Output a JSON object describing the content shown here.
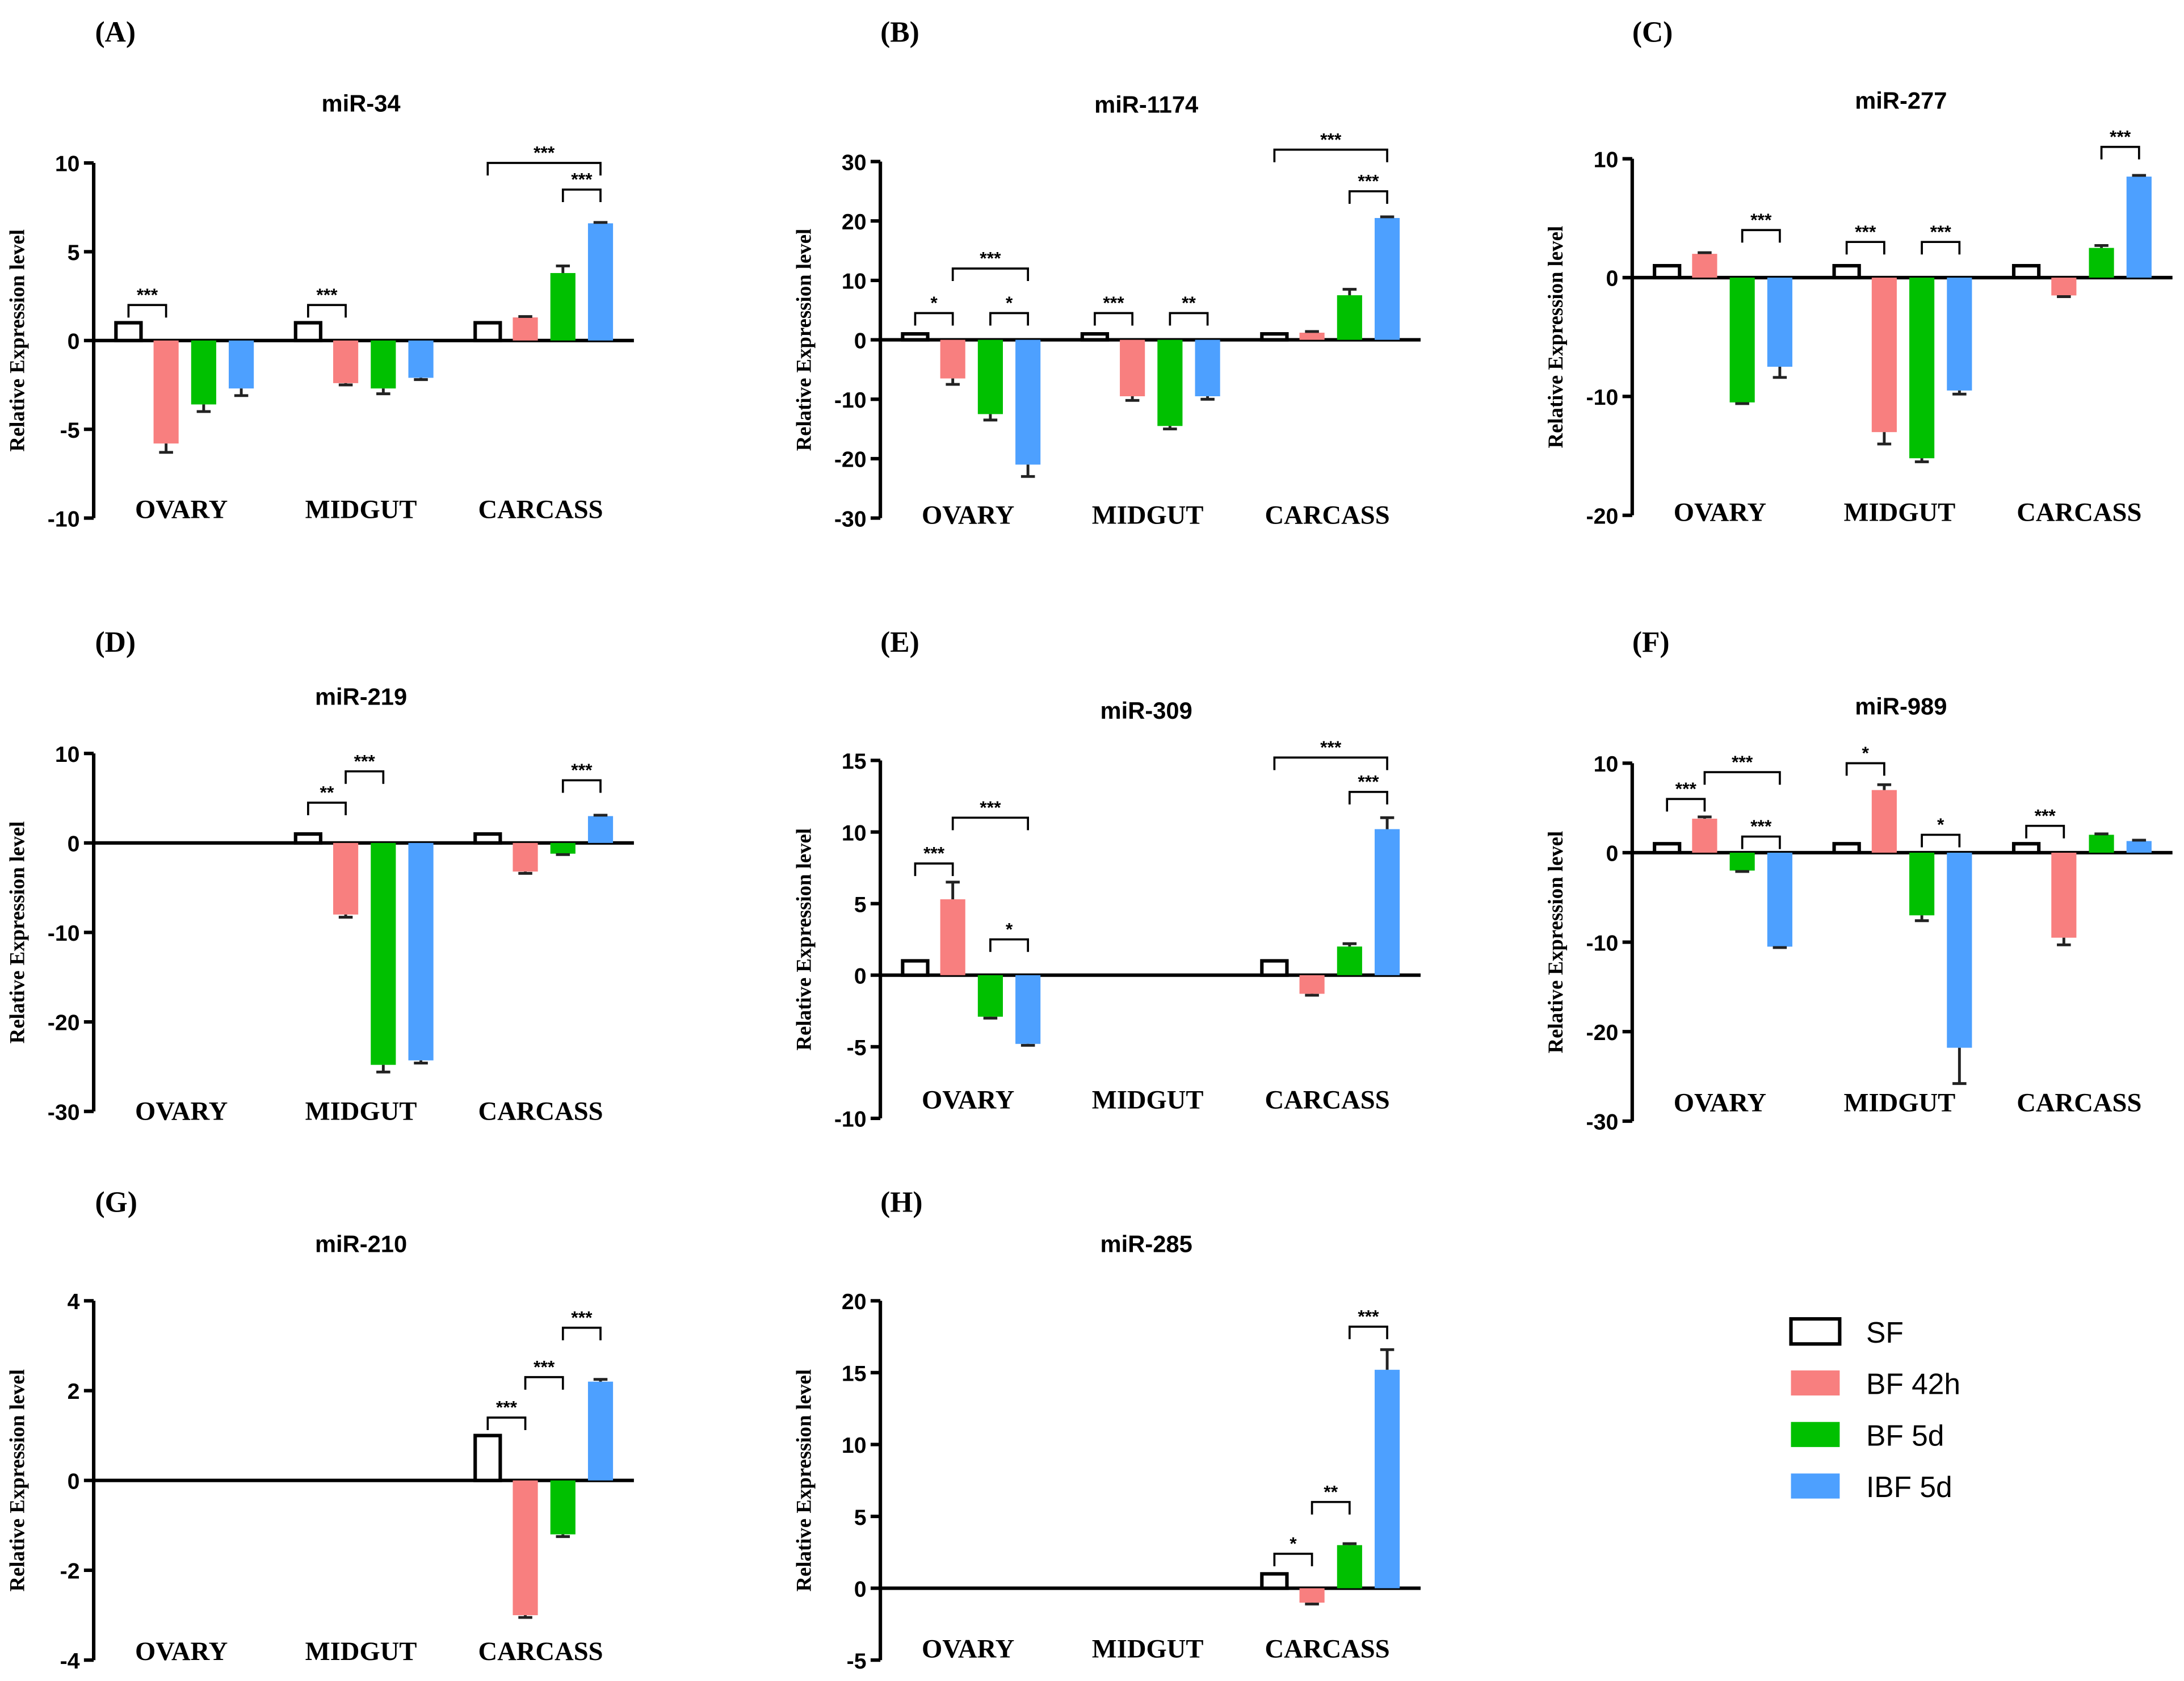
{
  "legend": [
    {
      "name": "SF",
      "color": "#FFFFFF",
      "stroke": "#000000"
    },
    {
      "name": "BF 42h",
      "color": "#F87F7F"
    },
    {
      "name": "BF 5d",
      "color": "#00C000"
    },
    {
      "name": "IBF 5d",
      "color": "#4DA0FF"
    }
  ],
  "chart_data": [
    {
      "type": "bar",
      "label": "(A)",
      "title": "miR-34",
      "ylabel": "Relative Expression level",
      "ylim": [
        -10,
        10
      ],
      "yticks": [
        -10,
        -5,
        0,
        5,
        10
      ],
      "categories": [
        "OVARY",
        "MIDGUT",
        "CARCASS"
      ],
      "values": [
        [
          1,
          -5.8,
          -3.6,
          -2.7
        ],
        [
          1,
          -2.4,
          -2.7,
          -2.1
        ],
        [
          1,
          1.3,
          3.8,
          6.6
        ]
      ],
      "errors": [
        [
          0,
          0.5,
          0.4,
          0.4
        ],
        [
          0,
          0.1,
          0.3,
          0.1
        ],
        [
          0,
          0.05,
          0.4,
          0.05
        ]
      ],
      "significance": [
        {
          "group": 0,
          "from": 0,
          "to": 1,
          "y": 2,
          "label": "***"
        },
        {
          "group": 1,
          "from": 0,
          "to": 1,
          "y": 2,
          "label": "***"
        },
        {
          "group": 2,
          "from": 2,
          "to": 3,
          "y": 8.5,
          "label": "***"
        },
        {
          "group": 2,
          "from": 0,
          "to": 3,
          "y": 10,
          "label": "***"
        }
      ]
    },
    {
      "type": "bar",
      "label": "(B)",
      "title": "miR-1174",
      "ylabel": "Relative Expression level",
      "ylim": [
        -30,
        30
      ],
      "yticks": [
        -30,
        -20,
        -10,
        0,
        10,
        20,
        30
      ],
      "categories": [
        "OVARY",
        "MIDGUT",
        "CARCASS"
      ],
      "values": [
        [
          1,
          -6.5,
          -12.5,
          -21
        ],
        [
          1,
          -9.5,
          -14.5,
          -9.5
        ],
        [
          1,
          1.2,
          7.5,
          20.5
        ]
      ],
      "errors": [
        [
          0,
          1,
          1,
          2
        ],
        [
          0,
          0.7,
          0.5,
          0.5
        ],
        [
          0,
          0.2,
          1,
          0.2
        ]
      ],
      "significance": [
        {
          "group": 0,
          "from": 0,
          "to": 1,
          "y": 4.5,
          "label": "*"
        },
        {
          "group": 0,
          "from": 2,
          "to": 3,
          "y": 4.5,
          "label": "*"
        },
        {
          "group": 0,
          "from": 1,
          "to": 3,
          "y": 12,
          "label": "***"
        },
        {
          "group": 1,
          "from": 0,
          "to": 1,
          "y": 4.5,
          "label": "***"
        },
        {
          "group": 1,
          "from": 2,
          "to": 3,
          "y": 4.5,
          "label": "**"
        },
        {
          "group": 2,
          "from": 2,
          "to": 3,
          "y": 25,
          "label": "***"
        },
        {
          "group": 2,
          "from": 0,
          "to": 3,
          "y": 32,
          "label": "***"
        }
      ]
    },
    {
      "type": "bar",
      "label": "(C)",
      "title": "miR-277",
      "ylabel": "Relative Expression level",
      "ylim": [
        -20,
        10
      ],
      "yticks": [
        -20,
        -10,
        0,
        10
      ],
      "categories": [
        "OVARY",
        "MIDGUT",
        "CARCASS"
      ],
      "values": [
        [
          1,
          2,
          -10.5,
          -7.5
        ],
        [
          1,
          -13,
          -15.2,
          -9.5
        ],
        [
          1,
          -1.5,
          2.5,
          8.5
        ]
      ],
      "errors": [
        [
          0,
          0.1,
          0.1,
          0.9
        ],
        [
          0,
          1,
          0.3,
          0.3
        ],
        [
          0,
          0.1,
          0.2,
          0.1
        ]
      ],
      "significance": [
        {
          "group": 0,
          "from": 2,
          "to": 3,
          "y": 4,
          "label": "***"
        },
        {
          "group": 1,
          "from": 0,
          "to": 1,
          "y": 3,
          "label": "***"
        },
        {
          "group": 1,
          "from": 2,
          "to": 3,
          "y": 3,
          "label": "***"
        },
        {
          "group": 2,
          "from": 2,
          "to": 3,
          "y": 11,
          "label": "***"
        }
      ]
    },
    {
      "type": "bar",
      "label": "(D)",
      "title": "miR-219",
      "ylabel": "Relative Expression level",
      "ylim": [
        -30,
        10
      ],
      "yticks": [
        -30,
        -20,
        -10,
        0,
        10
      ],
      "categories": [
        "OVARY",
        "MIDGUT",
        "CARCASS"
      ],
      "values": [
        null,
        [
          1,
          -8,
          -24.8,
          -24.3
        ],
        [
          1,
          -3.2,
          -1.2,
          3
        ]
      ],
      "errors": [
        null,
        [
          0,
          0.3,
          0.8,
          0.3
        ],
        [
          0,
          0.2,
          0.1,
          0.1
        ]
      ],
      "significance": [
        {
          "group": 1,
          "from": 0,
          "to": 1,
          "y": 4.5,
          "label": "**"
        },
        {
          "group": 1,
          "from": 1,
          "to": 2,
          "y": 8,
          "label": "***"
        },
        {
          "group": 2,
          "from": 2,
          "to": 3,
          "y": 7,
          "label": "***"
        }
      ]
    },
    {
      "type": "bar",
      "label": "(E)",
      "title": "miR-309",
      "ylabel": "Relative Expression level",
      "ylim": [
        -10,
        15
      ],
      "yticks": [
        -10,
        -5,
        0,
        5,
        10,
        15
      ],
      "categories": [
        "OVARY",
        "MIDGUT",
        "CARCASS"
      ],
      "values": [
        [
          1,
          5.3,
          -2.9,
          -4.8
        ],
        null,
        [
          1,
          -1.3,
          2,
          10.2
        ]
      ],
      "errors": [
        [
          0,
          1.2,
          0.1,
          0.1
        ],
        null,
        [
          0,
          0.1,
          0.2,
          0.8
        ]
      ],
      "significance": [
        {
          "group": 0,
          "from": 0,
          "to": 1,
          "y": 7.8,
          "label": "***"
        },
        {
          "group": 0,
          "from": 1,
          "to": 3,
          "y": 11,
          "label": "***"
        },
        {
          "group": 0,
          "from": 2,
          "to": 3,
          "y": 2.5,
          "label": "*"
        },
        {
          "group": 2,
          "from": 2,
          "to": 3,
          "y": 12.8,
          "label": "***"
        },
        {
          "group": 2,
          "from": 0,
          "to": 3,
          "y": 15.2,
          "label": "***"
        }
      ]
    },
    {
      "type": "bar",
      "label": "(F)",
      "title": "miR-989",
      "ylabel": "Relative Expression level",
      "ylim": [
        -30,
        10
      ],
      "yticks": [
        -30,
        -20,
        -10,
        0,
        10
      ],
      "categories": [
        "OVARY",
        "MIDGUT",
        "CARCASS"
      ],
      "values": [
        [
          1,
          3.8,
          -2,
          -10.5
        ],
        [
          1,
          7,
          -7,
          -21.8
        ],
        [
          1,
          -9.5,
          2,
          1.3
        ]
      ],
      "errors": [
        [
          0,
          0.2,
          0.1,
          0.1
        ],
        [
          0,
          0.6,
          0.6,
          4
        ],
        [
          0,
          0.8,
          0.1,
          0.1
        ]
      ],
      "significance": [
        {
          "group": 0,
          "from": 0,
          "to": 1,
          "y": 6,
          "label": "***"
        },
        {
          "group": 0,
          "from": 2,
          "to": 3,
          "y": 1.8,
          "label": "***"
        },
        {
          "group": 0,
          "from": 1,
          "to": 3,
          "y": 9,
          "label": "***"
        },
        {
          "group": 1,
          "from": 0,
          "to": 1,
          "y": 10,
          "label": "*"
        },
        {
          "group": 1,
          "from": 2,
          "to": 3,
          "y": 2,
          "label": "*"
        },
        {
          "group": 2,
          "from": 0,
          "to": 1,
          "y": 3,
          "label": "***"
        }
      ]
    },
    {
      "type": "bar",
      "label": "(G)",
      "title": "miR-210",
      "ylabel": "Relative Expression level",
      "ylim": [
        -4,
        4
      ],
      "yticks": [
        -4,
        -2,
        0,
        2,
        4
      ],
      "categories": [
        "OVARY",
        "MIDGUT",
        "CARCASS"
      ],
      "values": [
        null,
        null,
        [
          1,
          -3,
          -1.2,
          2.2
        ]
      ],
      "errors": [
        null,
        null,
        [
          0,
          0.05,
          0.05,
          0.05
        ]
      ],
      "significance": [
        {
          "group": 2,
          "from": 0,
          "to": 1,
          "y": 1.4,
          "label": "***"
        },
        {
          "group": 2,
          "from": 1,
          "to": 2,
          "y": 2.3,
          "label": "***"
        },
        {
          "group": 2,
          "from": 2,
          "to": 3,
          "y": 3.4,
          "label": "***"
        }
      ]
    },
    {
      "type": "bar",
      "label": "(H)",
      "title": "miR-285",
      "ylabel": "Relative Expression level",
      "ylim": [
        -5,
        20
      ],
      "yticks": [
        -5,
        0,
        5,
        10,
        15,
        20
      ],
      "categories": [
        "OVARY",
        "MIDGUT",
        "CARCASS"
      ],
      "values": [
        null,
        null,
        [
          1,
          -1,
          3,
          15.2
        ]
      ],
      "errors": [
        null,
        null,
        [
          0,
          0.1,
          0.1,
          1.4
        ]
      ],
      "significance": [
        {
          "group": 2,
          "from": 0,
          "to": 1,
          "y": 2.4,
          "label": "*"
        },
        {
          "group": 2,
          "from": 1,
          "to": 2,
          "y": 6,
          "label": "**"
        },
        {
          "group": 2,
          "from": 2,
          "to": 3,
          "y": 18.2,
          "label": "***"
        }
      ]
    }
  ]
}
